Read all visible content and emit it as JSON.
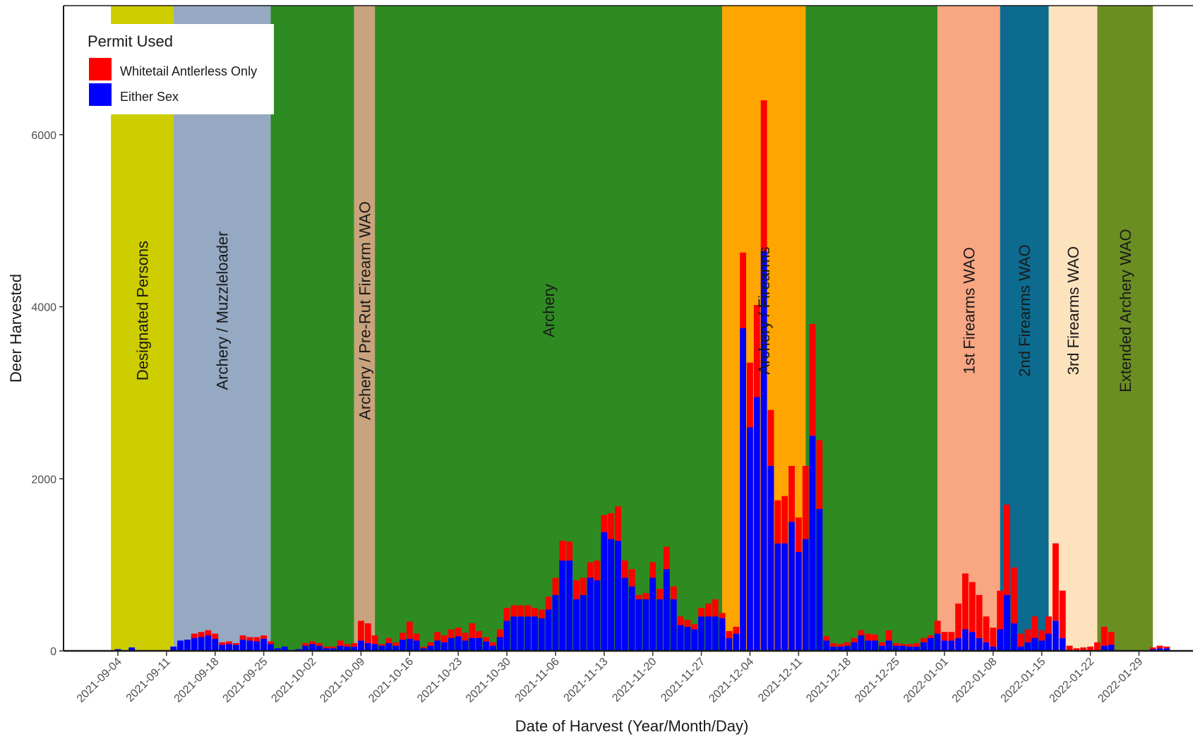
{
  "chart_data": {
    "type": "bar",
    "stacked": true,
    "xlabel": "Date of Harvest (Year/Month/Day)",
    "ylabel": "Deer Harvested",
    "ylim": [
      0,
      7500
    ],
    "y_ticks": [
      0,
      2000,
      4000,
      6000
    ],
    "x_ticks": [
      "2021-09-04",
      "2021-09-11",
      "2021-09-18",
      "2021-09-25",
      "2021-10-02",
      "2021-10-09",
      "2021-10-16",
      "2021-10-23",
      "2021-10-30",
      "2021-11-06",
      "2021-11-13",
      "2021-11-20",
      "2021-11-27",
      "2021-12-04",
      "2021-12-11",
      "2021-12-18",
      "2021-12-25",
      "2022-01-01",
      "2022-01-08",
      "2022-01-15",
      "2022-01-22",
      "2022-01-29"
    ],
    "legend": {
      "title": "Permit Used",
      "placement": "top-left",
      "items": [
        {
          "label": "Whitetail Antlerless Only",
          "color": "#ff0000"
        },
        {
          "label": "Either Sex",
          "color": "#0000ff"
        }
      ]
    },
    "grid": false,
    "seasons": [
      {
        "label": "Designated Persons",
        "start": "2021-09-03",
        "end": "2021-09-12",
        "color": "#cdcd00"
      },
      {
        "label": "Archery / Muzzleloader",
        "start": "2021-09-12",
        "end": "2021-09-26",
        "color": "#96a9c3"
      },
      {
        "label": "",
        "start": "2021-09-26",
        "end": "2021-10-08",
        "color": "#2e8b22"
      },
      {
        "label": "Archery / Pre-Rut Firearm WAO",
        "start": "2021-10-08",
        "end": "2021-10-11",
        "color": "#c9a37d"
      },
      {
        "label": "Archery",
        "start": "2021-10-11",
        "end": "2021-11-30",
        "color": "#2e8b22"
      },
      {
        "label": "Archery / Firearms",
        "start": "2021-11-30",
        "end": "2021-12-12",
        "color": "#ffa500"
      },
      {
        "label": "",
        "start": "2021-12-12",
        "end": "2021-12-31",
        "color": "#2e8b22"
      },
      {
        "label": "1st Firearms WAO",
        "start": "2021-12-31",
        "end": "2022-01-09",
        "color": "#f9a683"
      },
      {
        "label": "2nd Firearms WAO",
        "start": "2022-01-09",
        "end": "2022-01-16",
        "color": "#0d6b8f"
      },
      {
        "label": "3rd Firearms WAO",
        "start": "2022-01-16",
        "end": "2022-01-23",
        "color": "#fde2be"
      },
      {
        "label": "Extended Archery WAO",
        "start": "2022-01-23",
        "end": "2022-01-31",
        "color": "#6b8e23"
      }
    ],
    "x_start": "2021-09-04",
    "series": [
      {
        "name": "Either Sex",
        "color": "#0000ff",
        "values": [
          20,
          0,
          40,
          0,
          0,
          0,
          0,
          0,
          50,
          120,
          130,
          150,
          160,
          180,
          140,
          70,
          80,
          70,
          130,
          120,
          110,
          140,
          80,
          30,
          50,
          10,
          20,
          60,
          80,
          60,
          30,
          30,
          60,
          50,
          50,
          120,
          90,
          80,
          60,
          90,
          60,
          130,
          140,
          120,
          30,
          60,
          120,
          100,
          150,
          170,
          120,
          150,
          150,
          110,
          60,
          160,
          350,
          400,
          400,
          400,
          400,
          380,
          480,
          650,
          1050,
          1050,
          600,
          650,
          850,
          820,
          1380,
          1300,
          1280,
          850,
          750,
          600,
          600,
          850,
          600,
          950,
          600,
          300,
          280,
          250,
          400,
          400,
          400,
          380,
          150,
          200,
          3750,
          2600,
          2950,
          4650,
          2150,
          1250,
          1250,
          1500,
          1150,
          1300,
          2500,
          1650,
          120,
          50,
          50,
          60,
          100,
          180,
          120,
          120,
          60,
          120,
          60,
          60,
          50,
          50,
          100,
          150,
          200,
          120,
          120,
          150,
          250,
          220,
          150,
          100,
          50,
          250,
          650,
          320,
          50,
          100,
          150,
          120,
          200,
          350,
          150,
          0,
          0,
          0,
          0,
          0,
          60,
          70,
          0,
          0,
          0,
          0,
          0,
          20,
          30,
          30
        ]
      },
      {
        "name": "Whitetail Antlerless Only",
        "color": "#ff0000",
        "values": [
          0,
          0,
          0,
          0,
          0,
          0,
          0,
          0,
          0,
          0,
          0,
          50,
          60,
          60,
          60,
          30,
          30,
          20,
          50,
          40,
          50,
          40,
          30,
          0,
          0,
          0,
          0,
          30,
          30,
          30,
          20,
          20,
          60,
          30,
          40,
          230,
          230,
          100,
          20,
          60,
          40,
          80,
          200,
          80,
          20,
          40,
          100,
          80,
          100,
          100,
          90,
          170,
          80,
          50,
          40,
          90,
          150,
          130,
          130,
          130,
          100,
          100,
          150,
          200,
          230,
          220,
          220,
          200,
          180,
          230,
          200,
          300,
          400,
          200,
          200,
          50,
          70,
          180,
          120,
          260,
          150,
          100,
          80,
          60,
          100,
          150,
          200,
          60,
          80,
          80,
          880,
          750,
          1070,
          1750,
          650,
          500,
          550,
          650,
          400,
          850,
          1300,
          800,
          50,
          40,
          30,
          40,
          50,
          60,
          80,
          70,
          40,
          120,
          30,
          20,
          30,
          40,
          50,
          30,
          150,
          100,
          100,
          400,
          650,
          580,
          500,
          300,
          220,
          450,
          1050,
          650,
          150,
          150,
          250,
          120,
          200,
          900,
          550,
          60,
          30,
          40,
          50,
          100,
          220,
          150,
          0,
          0,
          0,
          0,
          0,
          20,
          30,
          20
        ]
      }
    ]
  }
}
